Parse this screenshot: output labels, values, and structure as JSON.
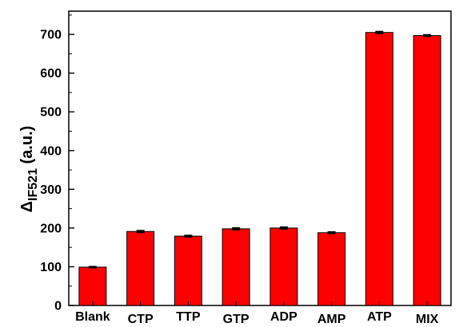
{
  "chart_data": {
    "type": "bar",
    "categories": [
      "Blank",
      "CTP",
      "TTP",
      "GTP",
      "ADP",
      "AMP",
      "ATP",
      "MIX"
    ],
    "values": [
      99,
      191,
      179,
      198,
      200,
      188,
      705,
      697
    ],
    "errors": [
      1.5,
      2.5,
      2.0,
      2.5,
      2.5,
      2.0,
      2.5,
      2.0
    ],
    "title": "",
    "xlabel": "",
    "ylabel": {
      "delta": "Δ",
      "subscript": "IF521",
      "suffix": " (a.u.)"
    },
    "ylim": [
      0,
      760
    ],
    "yticks": [
      0,
      100,
      200,
      300,
      400,
      500,
      600,
      700
    ],
    "grid": false,
    "legend": "none",
    "colors": {
      "bar": "#ff0000",
      "bar_edge": "#000000",
      "axis": "#000000"
    }
  }
}
